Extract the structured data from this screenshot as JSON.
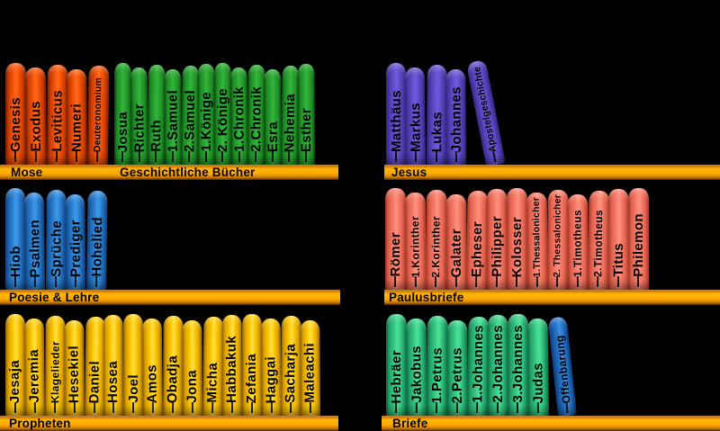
{
  "colors": {
    "background": "#000000",
    "shelf_gold": "#ffaa00",
    "label_text": "#000000",
    "mose_red": "#f85408",
    "geschichte_green": "#2aa733",
    "jesus_purple": "#6450ce",
    "poesie_blue": "#2f8add",
    "paulus_salmon": "#f97f6c",
    "propheten_yellow": "#ffc800",
    "briefe_springgreen": "#3bd389",
    "offenbarung_blue": "#2c7bd2"
  },
  "groups": [
    {
      "label": "Mose",
      "theme": "red",
      "books": [
        "Genesis",
        "Exodus",
        "Leviticus",
        "Numeri",
        "Deuteronomium"
      ]
    },
    {
      "label": "Geschichtliche Bücher",
      "theme": "green",
      "books": [
        "Josua",
        "Richter",
        "Ruth",
        "1.Samuel",
        "2.Samuel",
        "1.Könige",
        "2. Könige",
        "1.Chronik",
        "2.Chronik",
        "Esra",
        "Nehemia",
        "Esther"
      ]
    },
    {
      "label": "Jesus",
      "theme": "purple",
      "books": [
        "Matthäus",
        "Markus",
        "Lukas",
        "Johannes"
      ],
      "tilted_book": "Apostelgeschichte"
    },
    {
      "label": "Poesie & Lehre",
      "theme": "blue",
      "books": [
        "Hiob",
        "Psalmen",
        "Sprüche",
        "Prediger",
        "Hohelied"
      ]
    },
    {
      "label": "Paulusbriefe",
      "theme": "salmon",
      "books": [
        "Römer",
        "1.Korinther",
        "2.Korinther",
        "Galater",
        "Epheser",
        "Philipper",
        "Kolosser",
        "1.Thessalonicher",
        "2. Thessalonicher",
        "1.Timotheus",
        "2.Timotheus",
        "Titus",
        "Philemon"
      ]
    },
    {
      "label": "Propheten",
      "theme": "yellow",
      "books": [
        "Jesaja",
        "Jeremia",
        "Klagelieder",
        "Hesekiel",
        "Daniel",
        "Hosea",
        "Joel",
        "Amos",
        "Obadja",
        "Jona",
        "Micha",
        "Habbakuk",
        "Zefania",
        "Haggai",
        "Sacharja",
        "Maleachi"
      ]
    },
    {
      "label": "Briefe",
      "theme": "springgreen",
      "books": [
        "Hebräer",
        "Jakobus",
        "1.Petrus",
        "2.Petrus",
        "1.Johannes",
        "2.Johannes",
        "3.Johannes",
        "Judas"
      ],
      "tilted_book": "Offenbarung"
    }
  ]
}
